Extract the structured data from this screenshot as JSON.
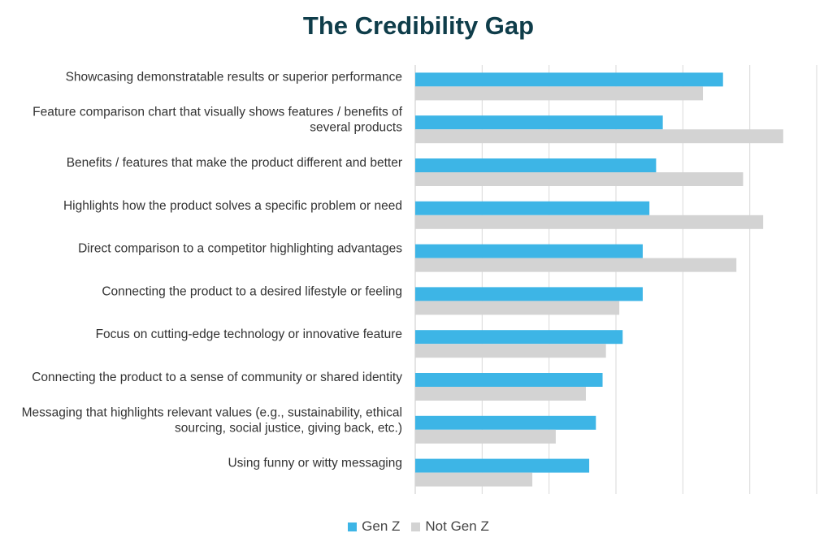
{
  "chart_data": {
    "type": "bar",
    "orientation": "horizontal",
    "title": "The Credibility Gap",
    "xlabel": "",
    "ylabel": "",
    "xlim": [
      0,
      60
    ],
    "grid": true,
    "legend_position": "bottom",
    "categories": [
      [
        "Showcasing demonstratable results or superior performance"
      ],
      [
        "Feature comparison chart that visually shows features / benefits of",
        "several products"
      ],
      [
        "Benefits / features that make the product different and better"
      ],
      [
        "Highlights how the product solves a specific problem or need"
      ],
      [
        "Direct comparison to a competitor highlighting advantages"
      ],
      [
        "Connecting the product to a desired lifestyle or feeling"
      ],
      [
        "Focus on cutting-edge technology or innovative feature"
      ],
      [
        "Connecting the product to a sense of community or shared identity"
      ],
      [
        "Messaging that highlights relevant values (e.g., sustainability, ethical",
        "sourcing, social justice, giving back, etc.)"
      ],
      [
        "Using funny or witty messaging"
      ]
    ],
    "series": [
      {
        "name": "Gen Z",
        "color": "#3db5e6",
        "values": [
          46,
          37,
          36,
          35,
          34,
          34,
          31,
          28,
          27,
          26
        ]
      },
      {
        "name": "Not Gen Z",
        "color": "#d3d3d3",
        "values": [
          43,
          55,
          49,
          52,
          48,
          30.5,
          28.5,
          25.5,
          21,
          17.5
        ]
      }
    ]
  }
}
